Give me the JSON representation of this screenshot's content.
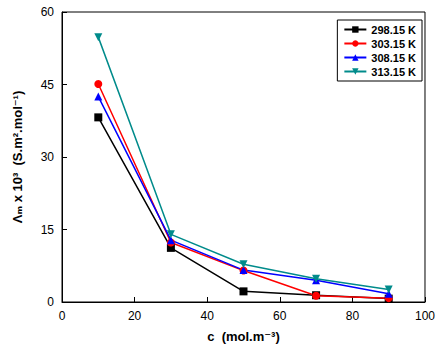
{
  "chart_data": {
    "type": "line",
    "x_label": "c  (mol.m⁻³)",
    "y_label": "Λₘ x 10³  (S.m².mol⁻¹)",
    "xlim": [
      0,
      100
    ],
    "xticks": [
      0,
      20,
      40,
      60,
      80,
      100
    ],
    "ylim": [
      0,
      60
    ],
    "yticks": [
      0,
      15,
      30,
      45,
      60
    ],
    "legend": "upper right",
    "grid": false,
    "x": [
      10,
      30,
      50,
      70,
      90
    ],
    "series": [
      {
        "name": "298.15 K",
        "color": "#000000",
        "marker": "square",
        "values": [
          38.2,
          11.2,
          2.2,
          1.4,
          0.7
        ]
      },
      {
        "name": "303.15 K",
        "color": "#ff0000",
        "marker": "circle",
        "values": [
          45.1,
          12.3,
          6.5,
          1.3,
          0.8
        ]
      },
      {
        "name": "308.15 K",
        "color": "#0000ff",
        "marker": "triangle",
        "values": [
          42.5,
          12.8,
          6.6,
          4.5,
          1.7
        ]
      },
      {
        "name": "313.15 K",
        "color": "#008b8b",
        "marker": "triangle-down",
        "values": [
          54.8,
          14.0,
          7.8,
          4.8,
          2.6
        ]
      }
    ]
  }
}
